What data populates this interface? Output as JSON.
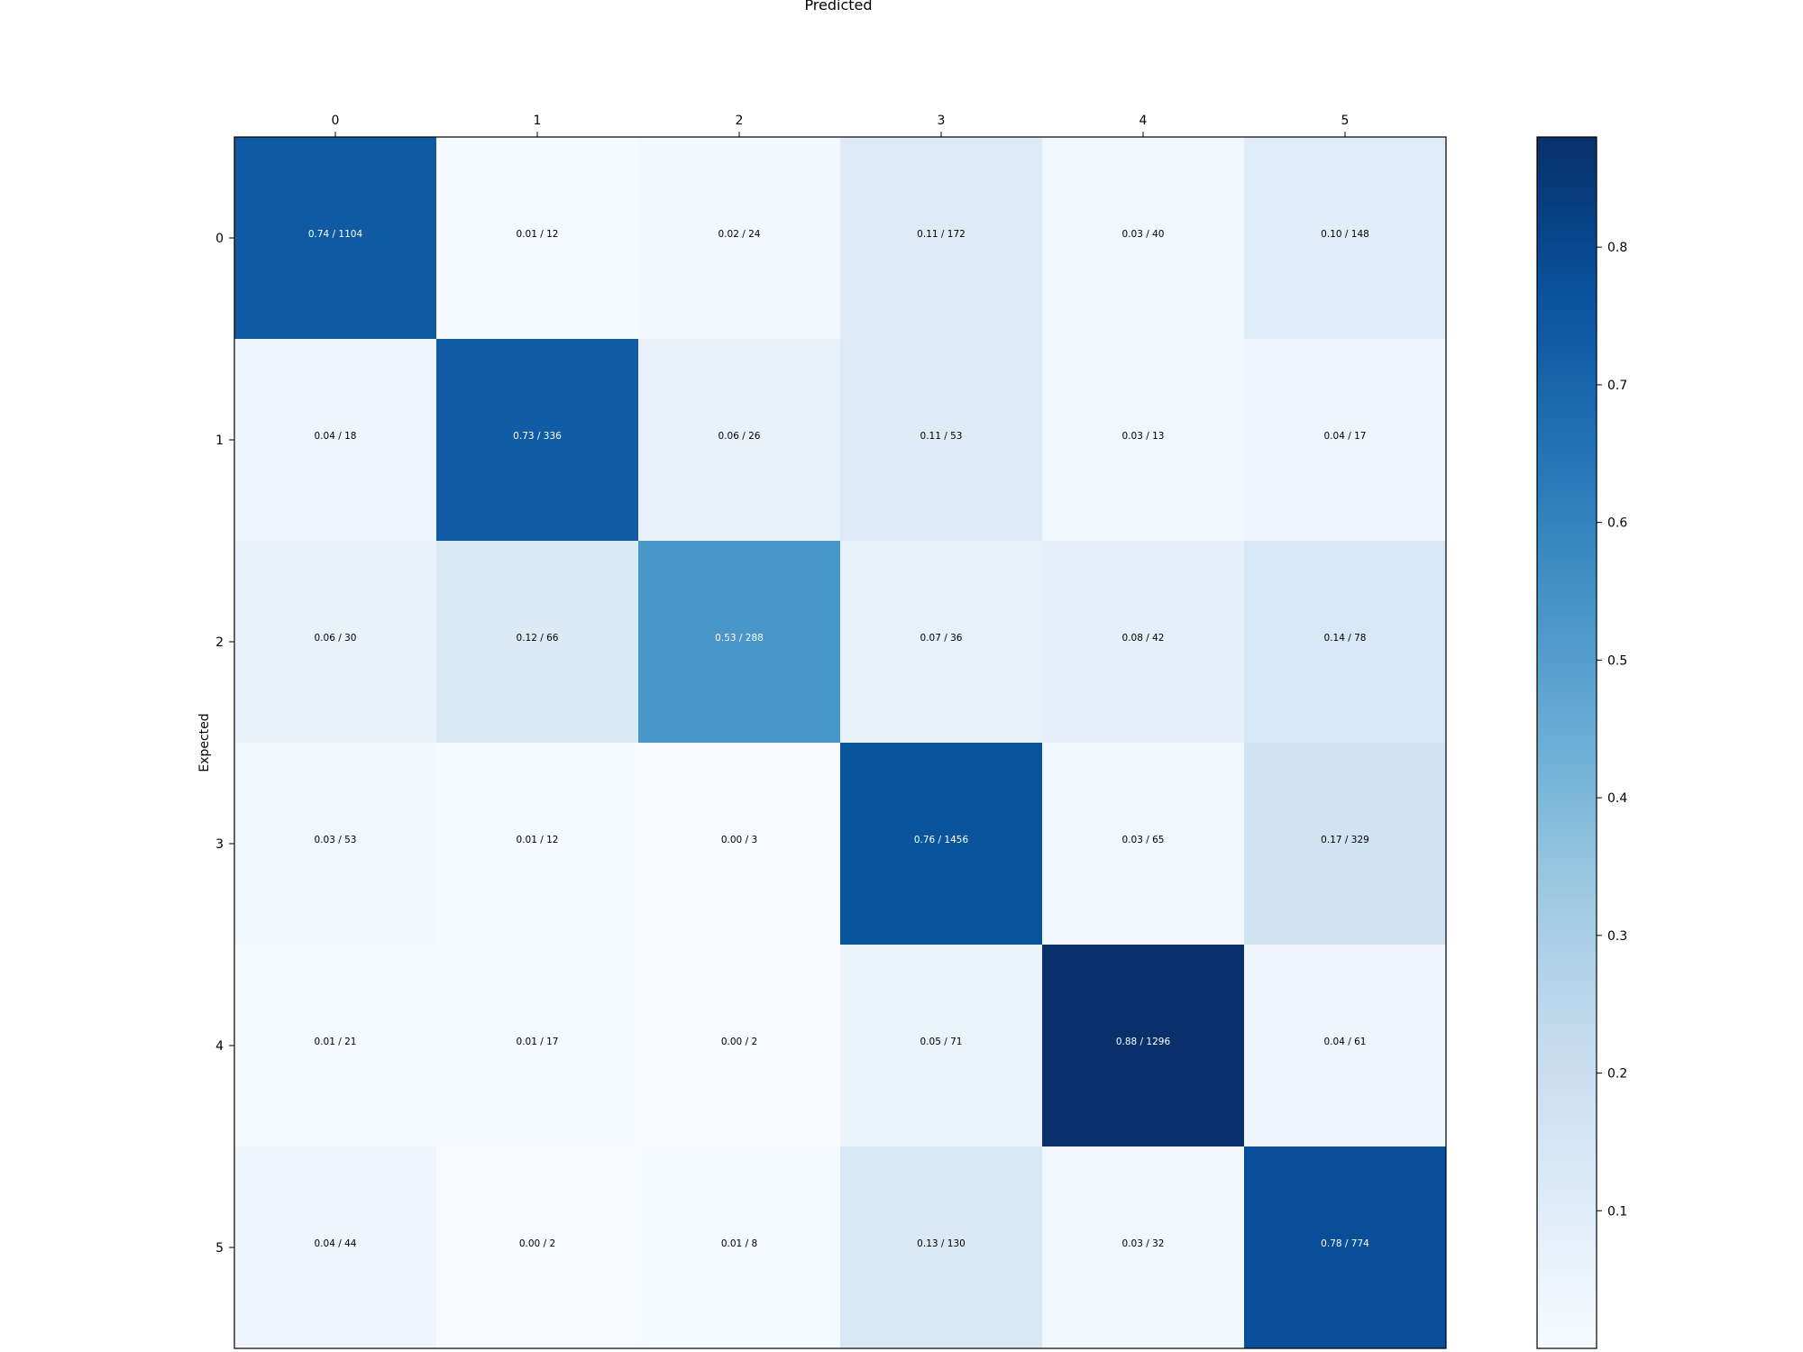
{
  "chart_data": {
    "type": "heatmap",
    "title": "Predicted",
    "xlabel": "Predicted",
    "ylabel": "Expected",
    "x_categories": [
      "0",
      "1",
      "2",
      "3",
      "4",
      "5"
    ],
    "y_categories": [
      "0",
      "1",
      "2",
      "3",
      "4",
      "5"
    ],
    "cells": [
      [
        {
          "value": 0.74,
          "count": 1104,
          "label": "0.74 / 1104"
        },
        {
          "value": 0.01,
          "count": 12,
          "label": "0.01 / 12"
        },
        {
          "value": 0.02,
          "count": 24,
          "label": "0.02 / 24"
        },
        {
          "value": 0.11,
          "count": 172,
          "label": "0.11 / 172"
        },
        {
          "value": 0.03,
          "count": 40,
          "label": "0.03 / 40"
        },
        {
          "value": 0.1,
          "count": 148,
          "label": "0.10 / 148"
        }
      ],
      [
        {
          "value": 0.04,
          "count": 18,
          "label": "0.04 / 18"
        },
        {
          "value": 0.73,
          "count": 336,
          "label": "0.73 / 336"
        },
        {
          "value": 0.06,
          "count": 26,
          "label": "0.06 / 26"
        },
        {
          "value": 0.11,
          "count": 53,
          "label": "0.11 / 53"
        },
        {
          "value": 0.03,
          "count": 13,
          "label": "0.03 / 13"
        },
        {
          "value": 0.04,
          "count": 17,
          "label": "0.04 / 17"
        }
      ],
      [
        {
          "value": 0.06,
          "count": 30,
          "label": "0.06 / 30"
        },
        {
          "value": 0.12,
          "count": 66,
          "label": "0.12 / 66"
        },
        {
          "value": 0.53,
          "count": 288,
          "label": "0.53 / 288"
        },
        {
          "value": 0.07,
          "count": 36,
          "label": "0.07 / 36"
        },
        {
          "value": 0.08,
          "count": 42,
          "label": "0.08 / 42"
        },
        {
          "value": 0.14,
          "count": 78,
          "label": "0.14 / 78"
        }
      ],
      [
        {
          "value": 0.03,
          "count": 53,
          "label": "0.03 / 53"
        },
        {
          "value": 0.01,
          "count": 12,
          "label": "0.01 / 12"
        },
        {
          "value": 0.0,
          "count": 3,
          "label": "0.00 / 3"
        },
        {
          "value": 0.76,
          "count": 1456,
          "label": "0.76 / 1456"
        },
        {
          "value": 0.03,
          "count": 65,
          "label": "0.03 / 65"
        },
        {
          "value": 0.17,
          "count": 329,
          "label": "0.17 / 329"
        }
      ],
      [
        {
          "value": 0.01,
          "count": 21,
          "label": "0.01 / 21"
        },
        {
          "value": 0.01,
          "count": 17,
          "label": "0.01 / 17"
        },
        {
          "value": 0.0,
          "count": 2,
          "label": "0.00 / 2"
        },
        {
          "value": 0.05,
          "count": 71,
          "label": "0.05 / 71"
        },
        {
          "value": 0.88,
          "count": 1296,
          "label": "0.88 / 1296"
        },
        {
          "value": 0.04,
          "count": 61,
          "label": "0.04 / 61"
        }
      ],
      [
        {
          "value": 0.04,
          "count": 44,
          "label": "0.04 / 44"
        },
        {
          "value": 0.0,
          "count": 2,
          "label": "0.00 / 2"
        },
        {
          "value": 0.01,
          "count": 8,
          "label": "0.01 / 8"
        },
        {
          "value": 0.13,
          "count": 130,
          "label": "0.13 / 130"
        },
        {
          "value": 0.03,
          "count": 32,
          "label": "0.03 / 32"
        },
        {
          "value": 0.78,
          "count": 774,
          "label": "0.78 / 774"
        }
      ]
    ],
    "colorbar": {
      "colormap": "Blues",
      "vmin": 0.0,
      "vmax": 0.88,
      "ticks": [
        0.1,
        0.2,
        0.3,
        0.4,
        0.5,
        0.6,
        0.7,
        0.8
      ],
      "tick_labels": [
        "0.1",
        "0.2",
        "0.3",
        "0.4",
        "0.5",
        "0.6",
        "0.7",
        "0.8"
      ]
    },
    "grid": false,
    "legend": "colorbar-right"
  }
}
